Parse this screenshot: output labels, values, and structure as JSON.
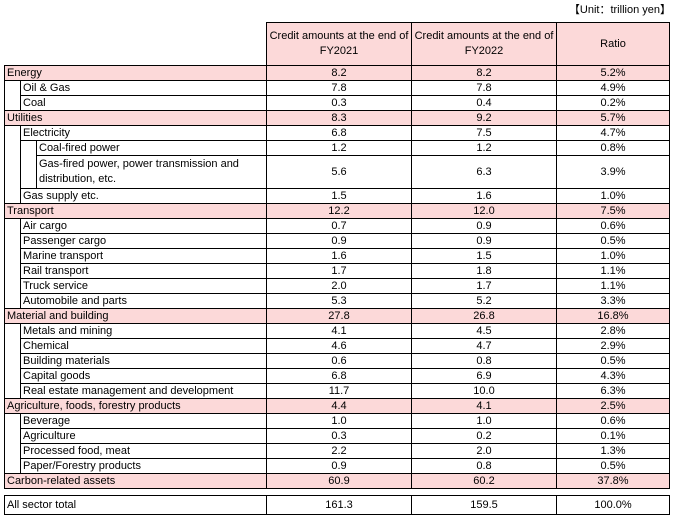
{
  "unit_label": "【Unit：trillion yen】",
  "headers": {
    "col1": "Credit amounts at the end of FY2021",
    "col2": "Credit amounts at the end of FY2022",
    "col3": "Ratio"
  },
  "rows": [
    {
      "level": 0,
      "label": "Energy",
      "v1": "8.2",
      "v2": "8.2",
      "ratio": "5.2%"
    },
    {
      "level": 1,
      "label": "Oil & Gas",
      "v1": "7.8",
      "v2": "7.8",
      "ratio": "4.9%"
    },
    {
      "level": 1,
      "label": "Coal",
      "v1": "0.3",
      "v2": "0.4",
      "ratio": "0.2%"
    },
    {
      "level": 0,
      "label": "Utilities",
      "v1": "8.3",
      "v2": "9.2",
      "ratio": "5.7%"
    },
    {
      "level": 1,
      "label": "Electricity",
      "v1": "6.8",
      "v2": "7.5",
      "ratio": "4.7%"
    },
    {
      "level": 2,
      "label": "Coal-fired power",
      "v1": "1.2",
      "v2": "1.2",
      "ratio": "0.8%"
    },
    {
      "level": 2,
      "label": "Gas-fired power, power transmission and distribution, etc.",
      "v1": "5.6",
      "v2": "6.3",
      "ratio": "3.9%"
    },
    {
      "level": 1,
      "label": "Gas supply etc.",
      "v1": "1.5",
      "v2": "1.6",
      "ratio": "1.0%"
    },
    {
      "level": 0,
      "label": "Transport",
      "v1": "12.2",
      "v2": "12.0",
      "ratio": "7.5%"
    },
    {
      "level": 1,
      "label": "Air cargo",
      "v1": "0.7",
      "v2": "0.9",
      "ratio": "0.6%"
    },
    {
      "level": 1,
      "label": "Passenger cargo",
      "v1": "0.9",
      "v2": "0.9",
      "ratio": "0.5%"
    },
    {
      "level": 1,
      "label": "Marine transport",
      "v1": "1.6",
      "v2": "1.5",
      "ratio": "1.0%"
    },
    {
      "level": 1,
      "label": "Rail transport",
      "v1": "1.7",
      "v2": "1.8",
      "ratio": "1.1%"
    },
    {
      "level": 1,
      "label": "Truck service",
      "v1": "2.0",
      "v2": "1.7",
      "ratio": "1.1%"
    },
    {
      "level": 1,
      "label": "Automobile and parts",
      "v1": "5.3",
      "v2": "5.2",
      "ratio": "3.3%"
    },
    {
      "level": 0,
      "label": "Material and building",
      "v1": "27.8",
      "v2": "26.8",
      "ratio": "16.8%"
    },
    {
      "level": 1,
      "label": "Metals and mining",
      "v1": "4.1",
      "v2": "4.5",
      "ratio": "2.8%"
    },
    {
      "level": 1,
      "label": "Chemical",
      "v1": "4.6",
      "v2": "4.7",
      "ratio": "2.9%"
    },
    {
      "level": 1,
      "label": "Building materials",
      "v1": "0.6",
      "v2": "0.8",
      "ratio": "0.5%"
    },
    {
      "level": 1,
      "label": "Capital goods",
      "v1": "6.8",
      "v2": "6.9",
      "ratio": "4.3%"
    },
    {
      "level": 1,
      "label": "Real estate management and development",
      "v1": "11.7",
      "v2": "10.0",
      "ratio": "6.3%"
    },
    {
      "level": 0,
      "label": "Agriculture, foods, forestry products",
      "v1": "4.4",
      "v2": "4.1",
      "ratio": "2.5%"
    },
    {
      "level": 1,
      "label": "Beverage",
      "v1": "1.0",
      "v2": "1.0",
      "ratio": "0.6%"
    },
    {
      "level": 1,
      "label": "Agriculture",
      "v1": "0.3",
      "v2": "0.2",
      "ratio": "0.1%"
    },
    {
      "level": 1,
      "label": "Processed food, meat",
      "v1": "2.2",
      "v2": "2.0",
      "ratio": "1.3%"
    },
    {
      "level": 1,
      "label": "Paper/Forestry products",
      "v1": "0.9",
      "v2": "0.8",
      "ratio": "0.5%"
    },
    {
      "level": 0,
      "label": "Carbon-related assets",
      "v1": "60.9",
      "v2": "60.2",
      "ratio": "37.8%"
    }
  ],
  "total": {
    "label": "All sector total",
    "v1": "161.3",
    "v2": "159.5",
    "ratio": "100.0%"
  },
  "colors": {
    "header_bg": "#fcd9d9",
    "section_bg": "#fcd9d9"
  }
}
